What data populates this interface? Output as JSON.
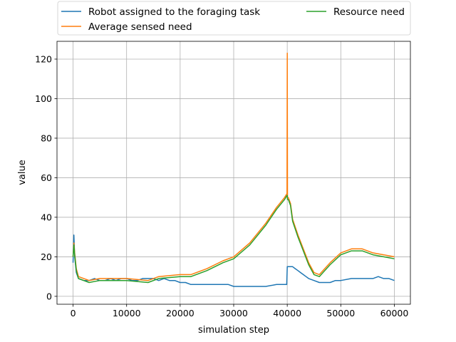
{
  "chart_data": {
    "type": "line",
    "xlabel": "simulation step",
    "ylabel": "value",
    "xlim": [
      -3000,
      63000
    ],
    "ylim": [
      -4,
      129
    ],
    "x_ticks": [
      0,
      10000,
      20000,
      30000,
      40000,
      50000,
      60000
    ],
    "y_ticks": [
      0,
      20,
      40,
      60,
      80,
      100,
      120
    ],
    "grid": true,
    "legend": {
      "placement": "top, above plot, 2 columns"
    },
    "series": [
      {
        "name": "Robot assigned to the foraging task",
        "color": "#1f77b4",
        "x": [
          0,
          150,
          300,
          600,
          1000,
          2000,
          3000,
          4000,
          5000,
          6000,
          7000,
          8000,
          9000,
          10000,
          11000,
          12000,
          13000,
          14000,
          15000,
          16000,
          17000,
          18000,
          19000,
          20000,
          21000,
          22000,
          23000,
          25000,
          27000,
          28000,
          29000,
          30000,
          32000,
          34000,
          36000,
          38000,
          39000,
          39900,
          40000,
          40500,
          41000,
          41500,
          42000,
          42500,
          43000,
          43500,
          44000,
          45000,
          46000,
          47000,
          48000,
          49000,
          50000,
          52000,
          54000,
          56000,
          57000,
          58000,
          59000,
          60000
        ],
        "values": [
          17,
          31,
          20,
          12,
          9,
          8,
          8,
          9,
          8,
          8,
          9,
          8,
          9,
          9,
          8,
          8,
          9,
          9,
          9,
          8,
          9,
          8,
          8,
          7,
          7,
          6,
          6,
          6,
          6,
          6,
          6,
          5,
          5,
          5,
          5,
          6,
          6,
          6,
          15,
          15,
          15,
          14,
          13,
          12,
          11,
          10,
          9,
          8,
          7,
          7,
          7,
          8,
          8,
          9,
          9,
          9,
          10,
          9,
          9,
          8
        ]
      },
      {
        "name": "Average sensed need",
        "color": "#ff7f0e",
        "x": [
          0,
          150,
          300,
          600,
          1000,
          3000,
          5000,
          8000,
          10000,
          14000,
          16000,
          20000,
          22000,
          25000,
          28000,
          30000,
          33000,
          36000,
          38000,
          39500,
          39950,
          40000,
          40050,
          40200,
          40600,
          41000,
          42000,
          43000,
          44000,
          45000,
          46000,
          48000,
          50000,
          52000,
          54000,
          56000,
          58000,
          60000
        ],
        "values": [
          20,
          27,
          22,
          14,
          10,
          8,
          9,
          9,
          9,
          8,
          10,
          11,
          11,
          14,
          18,
          20,
          27,
          37,
          45,
          50,
          52,
          123,
          50,
          50,
          47,
          39,
          31,
          24,
          17,
          12,
          11,
          17,
          22,
          24,
          24,
          22,
          21,
          20
        ]
      },
      {
        "name": "Resource need",
        "color": "#2ca02c",
        "x": [
          0,
          150,
          300,
          600,
          1000,
          3000,
          5000,
          8000,
          10000,
          14000,
          16000,
          20000,
          22000,
          25000,
          28000,
          30000,
          33000,
          36000,
          38000,
          39500,
          39950,
          40000,
          40050,
          40200,
          40600,
          41000,
          42000,
          43000,
          44000,
          45000,
          46000,
          48000,
          50000,
          52000,
          54000,
          56000,
          58000,
          60000
        ],
        "values": [
          20,
          26,
          21,
          13,
          9,
          7,
          8,
          8,
          8,
          7,
          9,
          10,
          10,
          13,
          17,
          19,
          26,
          36,
          44,
          49,
          51,
          51,
          49,
          49,
          46,
          38,
          30,
          23,
          16,
          11,
          10,
          16,
          21,
          23,
          23,
          21,
          20,
          19
        ]
      }
    ]
  }
}
